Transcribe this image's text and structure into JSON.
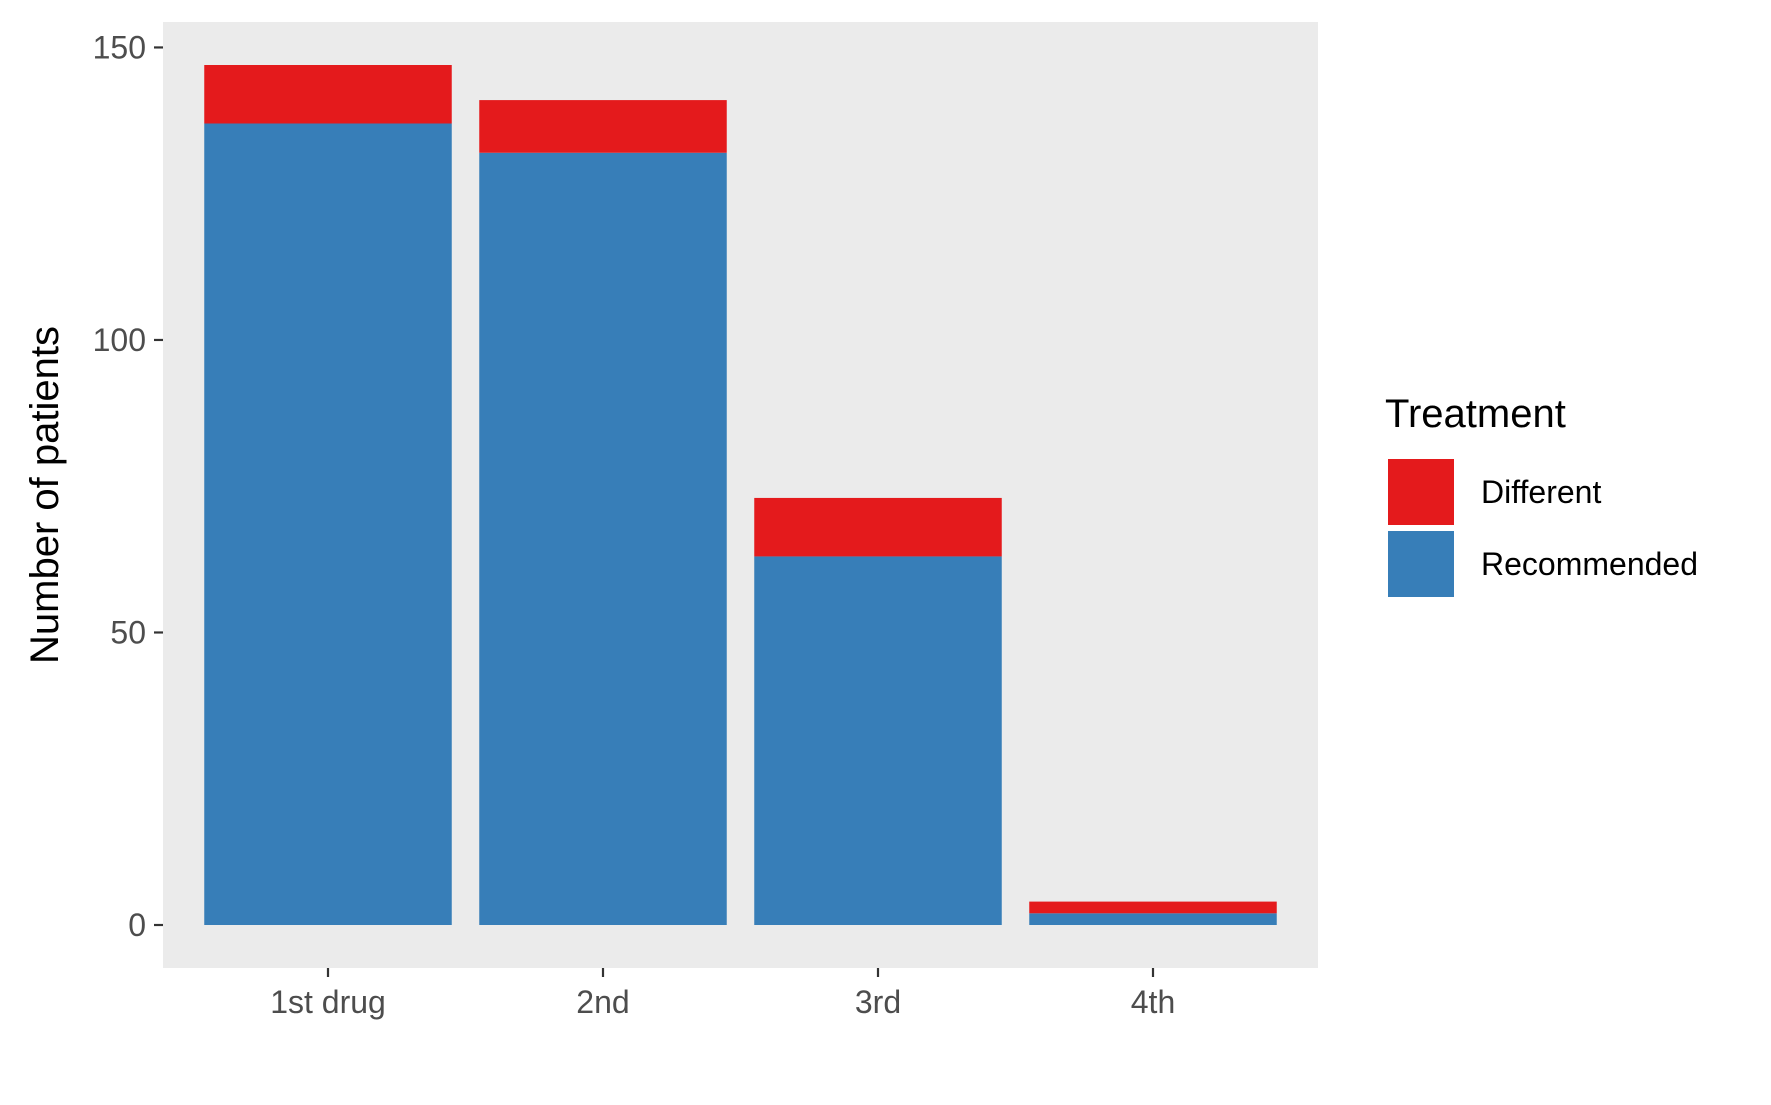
{
  "chart_data": {
    "type": "bar",
    "stacked": true,
    "categories": [
      "1st drug",
      "2nd",
      "3rd",
      "4th"
    ],
    "series": [
      {
        "name": "Recommended",
        "values": [
          137,
          132,
          63,
          2
        ],
        "color": "#377EB8"
      },
      {
        "name": "Different",
        "values": [
          10,
          9,
          10,
          2
        ],
        "color": "#E41A1C"
      }
    ],
    "xlabel": "",
    "ylabel": "Number of patients",
    "yticks": [
      0,
      50,
      100,
      150
    ],
    "ylim": [
      -7.35,
      154.35
    ],
    "grid": false,
    "panel_background": "#EBEBEB",
    "legend": {
      "title": "Treatment",
      "position": "right",
      "items": [
        "Different",
        "Recommended"
      ]
    }
  }
}
